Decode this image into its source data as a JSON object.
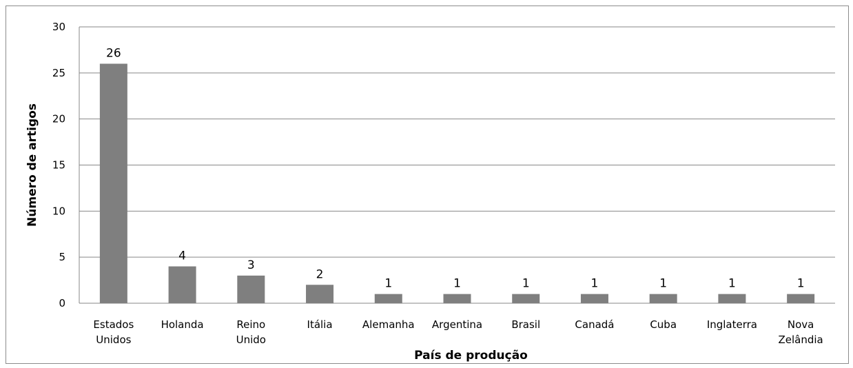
{
  "chart_data": {
    "type": "bar",
    "title": "",
    "xlabel": "País de produção",
    "ylabel": "Número de artigos",
    "ylim": [
      0,
      30
    ],
    "yticks": [
      0,
      5,
      10,
      15,
      20,
      25,
      30
    ],
    "grid": "horizontal",
    "legend": "none",
    "categories": [
      [
        "Estados",
        "Unidos"
      ],
      [
        "Holanda"
      ],
      [
        "Reino",
        "Unido"
      ],
      [
        "Itália"
      ],
      [
        "Alemanha"
      ],
      [
        "Argentina"
      ],
      [
        "Brasil"
      ],
      [
        "Canadá"
      ],
      [
        "Cuba"
      ],
      [
        "Inglaterra"
      ],
      [
        "Nova",
        "Zelândia"
      ]
    ],
    "values": [
      26,
      4,
      3,
      2,
      1,
      1,
      1,
      1,
      1,
      1,
      1
    ],
    "bar_color": "#7f7f7f",
    "grid_color": "#878787"
  }
}
